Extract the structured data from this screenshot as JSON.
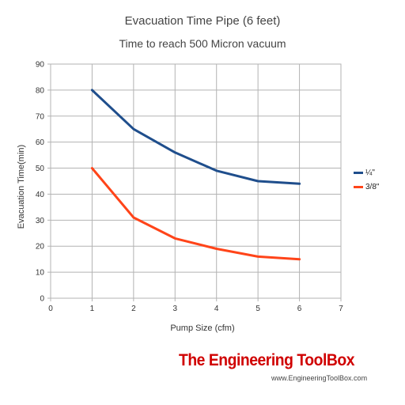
{
  "chart_data": {
    "type": "line",
    "title": "Evacuation Time Pipe (6 feet)",
    "subtitle": "Time to reach 500 Micron vacuum",
    "xlabel": "Pump Size (cfm)",
    "ylabel": "Evacuation Time(min)",
    "xlim": [
      0,
      7
    ],
    "ylim": [
      0,
      90
    ],
    "x_ticks": [
      0,
      1,
      2,
      3,
      4,
      5,
      6,
      7
    ],
    "y_ticks": [
      0,
      10,
      20,
      30,
      40,
      50,
      60,
      70,
      80,
      90
    ],
    "grid": true,
    "legend_position": "right",
    "x": [
      1,
      2,
      3,
      4,
      5,
      6
    ],
    "series": [
      {
        "name": "¼\"",
        "color": "#1f4e8c",
        "values": [
          80,
          65,
          56,
          49,
          45,
          44
        ]
      },
      {
        "name": "3/8\"",
        "color": "#ff4419",
        "values": [
          50,
          31,
          23,
          19,
          16,
          15
        ]
      }
    ]
  },
  "watermark": {
    "brand": "The Engineering ToolBox",
    "url": "www.EngineeringToolBox.com"
  }
}
